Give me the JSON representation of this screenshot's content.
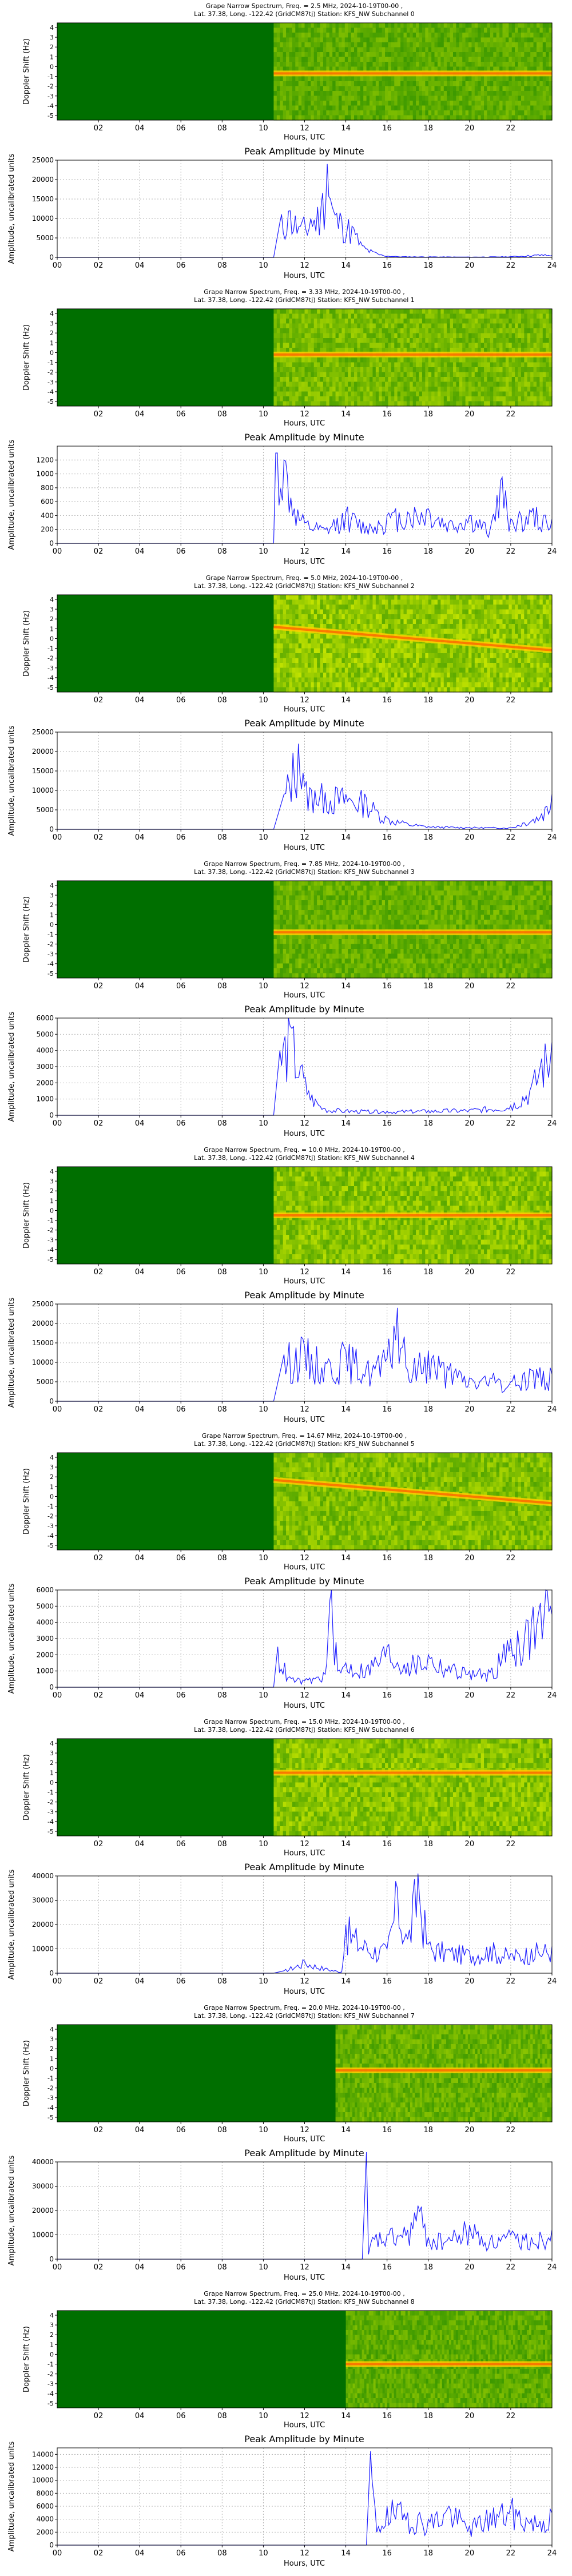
{
  "page": {
    "spectrum_title_prefix": "Grape Narrow Spectrum, Freq. = ",
    "spectrum_title_suffix": " MHz, 2024-10-19T00-00 ,",
    "spectrum_subtitle_prefix": "Lat.  37.38, Long. -122.42 (GridCM87tj) Station: KFS_NW Subchannel ",
    "spectrum_ylabel": "Doppler Shift (Hz)",
    "spectrum_xlabel": "Hours, UTC",
    "spectrum_yticks": [
      "4",
      "3",
      "2",
      "1",
      "0",
      "-1",
      "-2",
      "-3",
      "-4",
      "-5"
    ],
    "spectrum_xticks": [
      "02",
      "04",
      "06",
      "08",
      "10",
      "12",
      "14",
      "16",
      "18",
      "20",
      "22"
    ],
    "amp_title": "Peak Amplitude by Minute",
    "amp_ylabel": "Amplitude, uncalibrated units",
    "amp_xlabel": "Hours, UTC",
    "amp_xticks": [
      "00",
      "02",
      "04",
      "06",
      "08",
      "10",
      "12",
      "14",
      "16",
      "18",
      "20",
      "22",
      "24"
    ],
    "colors": {
      "line": "#1f1fff",
      "spectrum_base": "#006f00",
      "grid": "#b0b0b0"
    }
  },
  "chart_data": [
    {
      "type": "heatmap",
      "subchannel": "0",
      "freq": "2.5",
      "on_hour": 10.5,
      "level": 0.55,
      "band_y": -0.2,
      "trend": "flat"
    },
    {
      "type": "line",
      "title": "Peak Amplitude by Minute",
      "ylim": [
        0,
        25000
      ],
      "yticks": [
        0,
        5000,
        10000,
        15000,
        20000,
        25000
      ],
      "x": [
        0,
        10.5,
        10.8,
        11.3,
        11.8,
        12.3,
        12.8,
        13.1,
        13.4,
        13.8,
        14.3,
        14.8,
        15.3,
        15.8,
        16.5,
        20,
        22,
        23.5,
        24
      ],
      "y": [
        0,
        0,
        9000,
        12000,
        8000,
        10000,
        13000,
        24000,
        12000,
        10000,
        8000,
        3000,
        1500,
        500,
        200,
        100,
        200,
        700,
        500
      ]
    },
    {
      "type": "heatmap",
      "subchannel": "1",
      "freq": "3.33",
      "on_hour": 10.5,
      "level": 0.7,
      "band_y": 0.3,
      "trend": "flat"
    },
    {
      "type": "line",
      "title": "Peak Amplitude by Minute",
      "ylim": [
        0,
        1400
      ],
      "yticks": [
        0,
        200,
        400,
        600,
        800,
        1000,
        1200
      ],
      "x": [
        0,
        10.5,
        10.6,
        11,
        11.5,
        12,
        13,
        14,
        15,
        16,
        17,
        18,
        19,
        20,
        21,
        21.5,
        22,
        22.5,
        23,
        24
      ],
      "y": [
        0,
        0,
        1300,
        1200,
        500,
        300,
        200,
        450,
        250,
        400,
        450,
        500,
        300,
        400,
        200,
        900,
        350,
        400,
        450,
        350
      ]
    },
    {
      "type": "heatmap",
      "subchannel": "2",
      "freq": "5.0",
      "on_hour": 10.5,
      "level": 0.85,
      "band_y": 0.5,
      "trend": "down"
    },
    {
      "type": "line",
      "title": "Peak Amplitude by Minute",
      "ylim": [
        0,
        25000
      ],
      "yticks": [
        0,
        5000,
        10000,
        15000,
        20000,
        25000
      ],
      "x": [
        0,
        10.5,
        11,
        11.7,
        12,
        12.5,
        13,
        14,
        15,
        15.5,
        16,
        17,
        18,
        20,
        22,
        23.5,
        24
      ],
      "y": [
        0,
        0,
        9000,
        22000,
        11000,
        10000,
        9500,
        9000,
        8000,
        5000,
        3000,
        1500,
        700,
        500,
        400,
        4000,
        9000
      ]
    },
    {
      "type": "heatmap",
      "subchannel": "3",
      "freq": "7.85",
      "on_hour": 10.5,
      "level": 0.6,
      "band_y": -0.3,
      "trend": "flat"
    },
    {
      "type": "line",
      "title": "Peak Amplitude by Minute",
      "ylim": [
        0,
        6000
      ],
      "yticks": [
        0,
        1000,
        2000,
        3000,
        4000,
        5000,
        6000
      ],
      "x": [
        0,
        10.5,
        10.8,
        11.3,
        11.8,
        12.2,
        12.6,
        13,
        14,
        16,
        18,
        20,
        22,
        23,
        23.5,
        24
      ],
      "y": [
        0,
        0,
        4000,
        5500,
        3000,
        1500,
        800,
        400,
        300,
        250,
        300,
        350,
        600,
        1800,
        3500,
        4500
      ]
    },
    {
      "type": "heatmap",
      "subchannel": "4",
      "freq": "10.0",
      "on_hour": 10.5,
      "level": 0.8,
      "band_y": 0.0,
      "trend": "flat"
    },
    {
      "type": "line",
      "title": "Peak Amplitude by Minute",
      "ylim": [
        0,
        25000
      ],
      "yticks": [
        0,
        5000,
        10000,
        15000,
        20000,
        25000
      ],
      "x": [
        0,
        10.5,
        11,
        12,
        13,
        14,
        15,
        16,
        16.5,
        17,
        18,
        19,
        20,
        21,
        22,
        23,
        24
      ],
      "y": [
        0,
        0,
        12000,
        14000,
        10000,
        13000,
        9000,
        11000,
        24000,
        8000,
        13000,
        8000,
        6000,
        6000,
        5000,
        8000,
        7000
      ]
    },
    {
      "type": "heatmap",
      "subchannel": "5",
      "freq": "14.67",
      "on_hour": 10.5,
      "level": 0.75,
      "band_y": 1.0,
      "trend": "down"
    },
    {
      "type": "line",
      "title": "Peak Amplitude by Minute",
      "ylim": [
        0,
        6000
      ],
      "yticks": [
        0,
        1000,
        2000,
        3000,
        4000,
        5000,
        6000
      ],
      "x": [
        0,
        10.5,
        10.7,
        11.2,
        12,
        13,
        13.3,
        13.6,
        14,
        15,
        16,
        17,
        18,
        19,
        20,
        21,
        22,
        23,
        23.7,
        24
      ],
      "y": [
        0,
        0,
        2500,
        600,
        400,
        800,
        6000,
        1000,
        1500,
        1200,
        2500,
        1500,
        2000,
        1300,
        1000,
        900,
        3000,
        4000,
        6000,
        4500
      ]
    },
    {
      "type": "heatmap",
      "subchannel": "6",
      "freq": "15.0",
      "on_hour": 10.5,
      "level": 0.8,
      "band_y": 1.5,
      "trend": "flat"
    },
    {
      "type": "line",
      "title": "Peak Amplitude by Minute",
      "ylim": [
        0,
        40000
      ],
      "yticks": [
        0,
        10000,
        20000,
        30000,
        40000
      ],
      "x": [
        0,
        10.5,
        11,
        12,
        13,
        13.8,
        14,
        15,
        16,
        16.5,
        17,
        17.5,
        18,
        19,
        20,
        21,
        22,
        23,
        24
      ],
      "y": [
        0,
        0,
        1000,
        5000,
        2000,
        500,
        20000,
        12000,
        10000,
        35000,
        14000,
        41000,
        12000,
        10000,
        9000,
        11000,
        8000,
        10000,
        11000
      ]
    },
    {
      "type": "heatmap",
      "subchannel": "7",
      "freq": "20.0",
      "on_hour": 13.5,
      "level": 0.6,
      "band_y": 0.3,
      "trend": "flat"
    },
    {
      "type": "line",
      "title": "Peak Amplitude by Minute",
      "ylim": [
        0,
        40000
      ],
      "yticks": [
        0,
        10000,
        20000,
        30000,
        40000
      ],
      "x": [
        0,
        14.8,
        15,
        15.1,
        15.3,
        16,
        17,
        17.5,
        18,
        19,
        20,
        21,
        22,
        23,
        24
      ],
      "y": [
        0,
        0,
        44000,
        2000,
        9000,
        10000,
        12000,
        22000,
        9000,
        9000,
        14000,
        8000,
        10000,
        9000,
        12000
      ]
    },
    {
      "type": "heatmap",
      "subchannel": "8",
      "freq": "25.0",
      "on_hour": 14.0,
      "level": 0.55,
      "band_y": -0.5,
      "trend": "flat"
    },
    {
      "type": "line",
      "title": "Peak Amplitude by Minute",
      "ylim": [
        0,
        15000
      ],
      "yticks": [
        0,
        2000,
        4000,
        6000,
        8000,
        10000,
        12000,
        14000
      ],
      "x": [
        0,
        15.0,
        15.2,
        15.5,
        16,
        17,
        18,
        19,
        20,
        21,
        22,
        23,
        24
      ],
      "y": [
        0,
        0,
        14500,
        2000,
        6000,
        5000,
        4000,
        6000,
        3000,
        5000,
        6000,
        4000,
        5000
      ]
    }
  ]
}
